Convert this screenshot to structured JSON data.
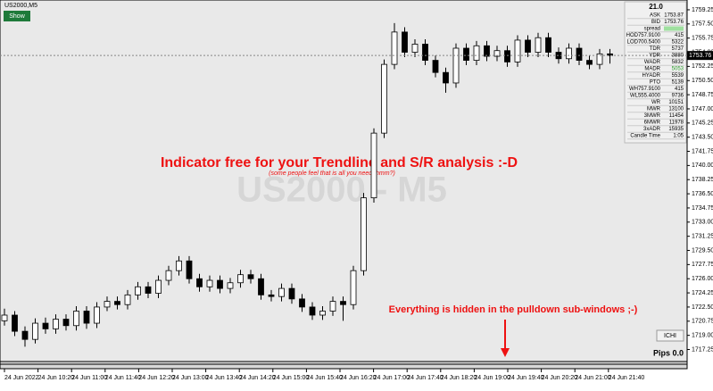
{
  "chart_data": {
    "type": "candlestick",
    "symbol": "US2000,M5",
    "show_button": "Show",
    "watermark": "US2000 - M5",
    "headline": "Indicator free for your Trendline and S/R analysis :-D",
    "subline": "(some people feel that is all you need, hmm?)",
    "note": "Everything is hidden in the pulldown sub-windows ;-)",
    "ichi_button": "ICHI",
    "pips": "Pips 0.0",
    "last_price_label": "1753.76",
    "colors": {
      "up": "#ffffff",
      "down": "#000000",
      "outline": "#000000",
      "annotation": "#ee1111"
    },
    "ylim": [
      1715.76,
      1760.46
    ],
    "yticks": [
      {
        "value": 1759.25,
        "label": "1759.25"
      },
      {
        "value": 1757.5,
        "label": "1757.50"
      },
      {
        "value": 1755.75,
        "label": "1755.75"
      },
      {
        "value": 1754,
        "label": "1754.00"
      },
      {
        "value": 1752.25,
        "label": "1752.25"
      },
      {
        "value": 1750.5,
        "label": "1750.50"
      },
      {
        "value": 1748.75,
        "label": "1748.75"
      },
      {
        "value": 1747,
        "label": "1747.00"
      },
      {
        "value": 1745.25,
        "label": "1745.25"
      },
      {
        "value": 1743.5,
        "label": "1743.50"
      },
      {
        "value": 1741.75,
        "label": "1741.75"
      },
      {
        "value": 1740,
        "label": "1740.00"
      },
      {
        "value": 1738.25,
        "label": "1738.25"
      },
      {
        "value": 1736.5,
        "label": "1736.50"
      },
      {
        "value": 1734.75,
        "label": "1734.75"
      },
      {
        "value": 1733,
        "label": "1733.00"
      },
      {
        "value": 1731.25,
        "label": "1731.25"
      },
      {
        "value": 1729.5,
        "label": "1729.50"
      },
      {
        "value": 1727.75,
        "label": "1727.75"
      },
      {
        "value": 1726,
        "label": "1726.00"
      },
      {
        "value": 1724.25,
        "label": "1724.25"
      },
      {
        "value": 1722.5,
        "label": "1722.50"
      },
      {
        "value": 1720.75,
        "label": "1720.75"
      },
      {
        "value": 1719,
        "label": "1719.00"
      },
      {
        "value": 1717.25,
        "label": "1717.25"
      }
    ],
    "xlabels": [
      "24 Jun 2022",
      "24 Jun 10:20",
      "24 Jun 11:00",
      "24 Jun 11:40",
      "24 Jun 12:20",
      "24 Jun 13:00",
      "24 Jun 13:40",
      "24 Jun 14:20",
      "24 Jun 15:00",
      "24 Jun 15:40",
      "24 Jun 16:20",
      "24 Jun 17:00",
      "24 Jun 17:40",
      "24 Jun 18:20",
      "24 Jun 19:00",
      "24 Jun 19:40",
      "24 Jun 20:20",
      "24 Jun 21:00",
      "24 Jun 21:40"
    ],
    "ohlc": [
      [
        1720.8,
        1722.3,
        1720.2,
        1721.5
      ],
      [
        1721.5,
        1722.0,
        1718.9,
        1719.5
      ],
      [
        1719.5,
        1720.1,
        1717.6,
        1718.5
      ],
      [
        1718.5,
        1721.1,
        1718.0,
        1720.5
      ],
      [
        1720.5,
        1721.2,
        1719.2,
        1719.8
      ],
      [
        1719.8,
        1721.6,
        1719.2,
        1721.0
      ],
      [
        1721.0,
        1721.6,
        1719.6,
        1720.2
      ],
      [
        1720.2,
        1722.6,
        1719.6,
        1722.0
      ],
      [
        1722.0,
        1722.6,
        1719.8,
        1720.5
      ],
      [
        1720.5,
        1723.1,
        1719.9,
        1722.5
      ],
      [
        1722.5,
        1723.8,
        1722.0,
        1723.2
      ],
      [
        1723.2,
        1723.8,
        1722.2,
        1722.8
      ],
      [
        1722.8,
        1724.6,
        1722.2,
        1724.0
      ],
      [
        1724.0,
        1725.6,
        1723.4,
        1725.0
      ],
      [
        1725.0,
        1725.6,
        1723.6,
        1724.2
      ],
      [
        1724.2,
        1726.4,
        1723.6,
        1725.8
      ],
      [
        1725.8,
        1727.6,
        1725.2,
        1727.0
      ],
      [
        1727.0,
        1728.8,
        1726.4,
        1728.2
      ],
      [
        1728.2,
        1728.8,
        1725.4,
        1726.0
      ],
      [
        1726.0,
        1726.6,
        1724.4,
        1725.0
      ],
      [
        1725.0,
        1726.4,
        1724.4,
        1725.8
      ],
      [
        1725.8,
        1726.4,
        1724.2,
        1724.8
      ],
      [
        1724.8,
        1726.1,
        1724.2,
        1725.5
      ],
      [
        1725.5,
        1727.1,
        1724.9,
        1726.5
      ],
      [
        1726.5,
        1727.1,
        1725.4,
        1726.0
      ],
      [
        1726.0,
        1726.6,
        1723.4,
        1724.0
      ],
      [
        1724.0,
        1724.6,
        1723.2,
        1723.8
      ],
      [
        1723.8,
        1725.4,
        1723.2,
        1724.8
      ],
      [
        1724.8,
        1725.4,
        1722.9,
        1723.5
      ],
      [
        1723.5,
        1724.1,
        1721.9,
        1722.5
      ],
      [
        1722.5,
        1723.1,
        1720.9,
        1721.5
      ],
      [
        1721.5,
        1722.6,
        1720.9,
        1722.0
      ],
      [
        1722.0,
        1723.8,
        1721.4,
        1723.2
      ],
      [
        1723.2,
        1723.8,
        1720.8,
        1722.8
      ],
      [
        1722.8,
        1727.6,
        1722.2,
        1727.0
      ],
      [
        1727.0,
        1736.6,
        1726.4,
        1736.0
      ],
      [
        1736.0,
        1744.6,
        1735.4,
        1744.0
      ],
      [
        1744.0,
        1753.1,
        1743.4,
        1752.5
      ],
      [
        1752.5,
        1757.6,
        1751.9,
        1756.5
      ],
      [
        1756.5,
        1757.1,
        1753.4,
        1754.0
      ],
      [
        1754.0,
        1755.6,
        1753.4,
        1755.0
      ],
      [
        1755.0,
        1755.6,
        1752.4,
        1753.0
      ],
      [
        1753.0,
        1753.6,
        1750.9,
        1751.5
      ],
      [
        1751.5,
        1752.1,
        1749.0,
        1750.2
      ],
      [
        1750.2,
        1755.1,
        1749.6,
        1754.5
      ],
      [
        1754.5,
        1755.1,
        1752.4,
        1753.0
      ],
      [
        1753.0,
        1755.4,
        1752.4,
        1754.8
      ],
      [
        1754.8,
        1755.4,
        1752.9,
        1753.5
      ],
      [
        1753.5,
        1754.8,
        1752.9,
        1754.2
      ],
      [
        1754.2,
        1754.8,
        1752.2,
        1752.8
      ],
      [
        1752.8,
        1756.1,
        1752.2,
        1755.5
      ],
      [
        1755.5,
        1756.1,
        1753.4,
        1754.0
      ],
      [
        1754.0,
        1756.4,
        1753.4,
        1755.8
      ],
      [
        1755.8,
        1756.4,
        1753.4,
        1754.0
      ],
      [
        1754.0,
        1754.6,
        1752.6,
        1753.2
      ],
      [
        1753.2,
        1755.1,
        1752.6,
        1754.5
      ],
      [
        1754.5,
        1755.1,
        1752.4,
        1753.0
      ],
      [
        1753.0,
        1753.6,
        1751.9,
        1752.5
      ],
      [
        1752.5,
        1754.4,
        1751.9,
        1753.8
      ],
      [
        1753.8,
        1754.4,
        1752.6,
        1753.6
      ]
    ],
    "panel": {
      "title": "21.0",
      "rows": [
        [
          "ASK",
          "1753.87"
        ],
        [
          "BID",
          "1753.76"
        ],
        [
          "spread",
          ""
        ],
        [
          "HOD757.9100",
          "415"
        ],
        [
          "LOD700.5400",
          "5322"
        ],
        [
          "TDR",
          "5737"
        ],
        [
          "YDR",
          "3880"
        ],
        [
          "WADR",
          "5832"
        ],
        [
          "MADR",
          "5053"
        ],
        [
          "HYADR",
          "5539"
        ],
        [
          "PTO",
          "5139"
        ],
        [
          "WH757.9100",
          "415"
        ],
        [
          "WL555.4000",
          "9736"
        ],
        [
          "WR",
          "10151"
        ],
        [
          "MWR",
          "13100"
        ],
        [
          "3MWR",
          "11454"
        ],
        [
          "6MWR",
          "11978"
        ],
        [
          "3xADR",
          "15935"
        ],
        [
          "Candle Time",
          "1:05"
        ]
      ]
    }
  }
}
